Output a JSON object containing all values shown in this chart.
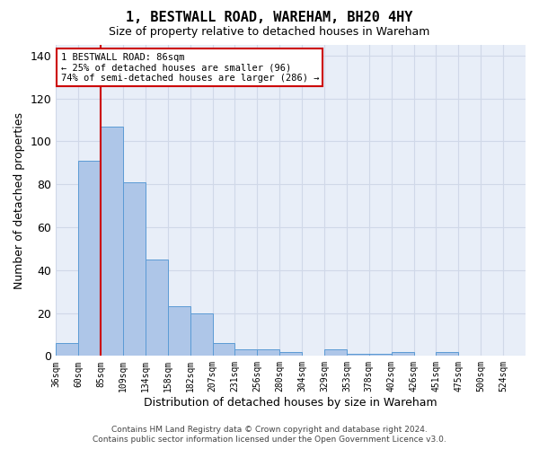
{
  "title": "1, BESTWALL ROAD, WAREHAM, BH20 4HY",
  "subtitle": "Size of property relative to detached houses in Wareham",
  "xlabel": "Distribution of detached houses by size in Wareham",
  "ylabel": "Number of detached properties",
  "footer_line1": "Contains HM Land Registry data © Crown copyright and database right 2024.",
  "footer_line2": "Contains public sector information licensed under the Open Government Licence v3.0.",
  "bar_values": [
    6,
    91,
    107,
    81,
    45,
    23,
    20,
    6,
    3,
    3,
    2,
    0,
    3,
    1,
    1,
    2,
    0,
    2
  ],
  "x_labels": [
    "36sqm",
    "60sqm",
    "85sqm",
    "109sqm",
    "134sqm",
    "158sqm",
    "182sqm",
    "207sqm",
    "231sqm",
    "256sqm",
    "280sqm",
    "304sqm",
    "329sqm",
    "353sqm",
    "378sqm",
    "402sqm",
    "426sqm",
    "451sqm",
    "475sqm",
    "500sqm",
    "524sqm"
  ],
  "bar_color": "#aec6e8",
  "bar_edge_color": "#5b9bd5",
  "grid_color": "#d0d8e8",
  "background_color": "#e8eef8",
  "vline_color": "#cc0000",
  "annotation_line1": "1 BESTWALL ROAD: 86sqm",
  "annotation_line2": "← 25% of detached houses are smaller (96)",
  "annotation_line3": "74% of semi-detached houses are larger (286) →",
  "annotation_box_color": "#ffffff",
  "annotation_box_edge": "#cc0000",
  "ylim": [
    0,
    145
  ],
  "yticks": [
    0,
    20,
    40,
    60,
    80,
    100,
    120,
    140
  ]
}
